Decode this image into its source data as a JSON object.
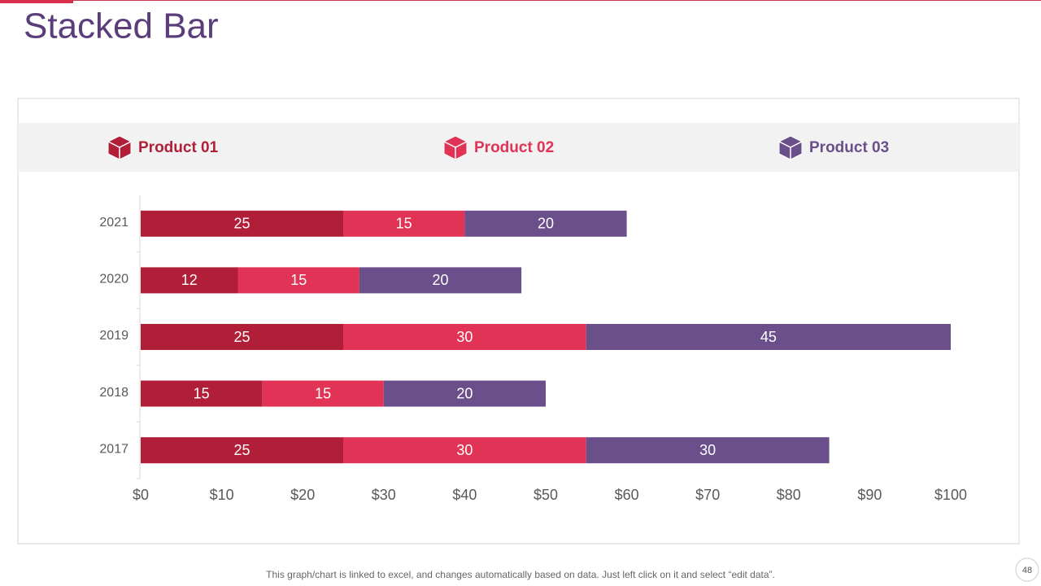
{
  "page_title": "Stacked Bar",
  "footer_note": "This graph/chart is linked to excel, and changes automatically based on data. Just left click on it and select “edit data”.",
  "page_number": "48",
  "chart_data": {
    "type": "stacked-bar-horizontal",
    "categories": [
      "2017",
      "2018",
      "2019",
      "2020",
      "2021"
    ],
    "series": [
      {
        "name": "Product 01",
        "color": "#b01e38",
        "values": [
          25,
          15,
          25,
          12,
          25
        ]
      },
      {
        "name": "Product 02",
        "color": "#e03355",
        "values": [
          30,
          15,
          30,
          15,
          15
        ]
      },
      {
        "name": "Product 03",
        "color": "#6a4f8a",
        "values": [
          30,
          20,
          45,
          20,
          20
        ]
      }
    ],
    "xlim": [
      0,
      100
    ],
    "xticks": [
      {
        "value": 0,
        "label": "$0"
      },
      {
        "value": 10,
        "label": "$10"
      },
      {
        "value": 20,
        "label": "$20"
      },
      {
        "value": 30,
        "label": "$30"
      },
      {
        "value": 40,
        "label": "$40"
      },
      {
        "value": 50,
        "label": "$50"
      },
      {
        "value": 60,
        "label": "$60"
      },
      {
        "value": 70,
        "label": "$70"
      },
      {
        "value": 80,
        "label": "$80"
      },
      {
        "value": 90,
        "label": "$90"
      },
      {
        "value": 100,
        "label": "$100"
      }
    ],
    "legend": "top"
  }
}
